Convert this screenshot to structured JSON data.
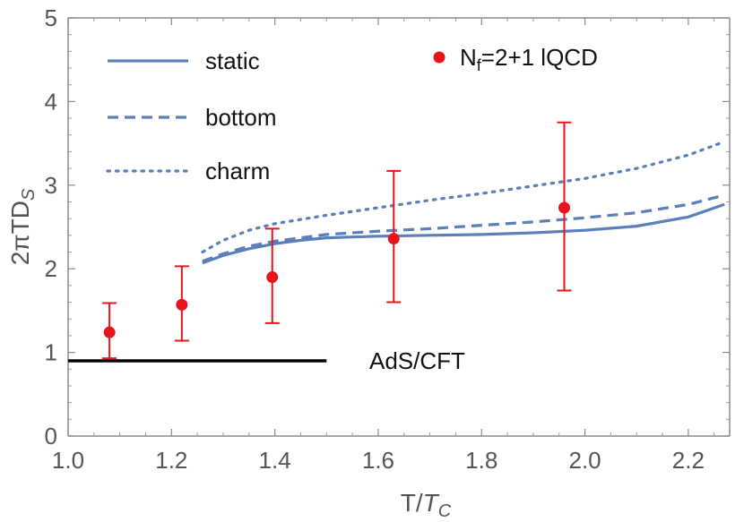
{
  "chart_data": {
    "type": "line",
    "xlabel": "T/T_C",
    "ylabel": "2πTD_S",
    "xlim": [
      1.0,
      2.28
    ],
    "ylim": [
      0,
      5
    ],
    "xticks": [
      "1.0",
      "1.2",
      "1.4",
      "1.6",
      "1.8",
      "2.0",
      "2.2"
    ],
    "yticks": [
      "0",
      "1",
      "2",
      "3",
      "4",
      "5"
    ],
    "grid": false,
    "legend_placement": "top-left",
    "series": [
      {
        "name": "static",
        "style": "solid",
        "color": "#5b7fb8",
        "x": [
          1.26,
          1.3,
          1.35,
          1.4,
          1.45,
          1.5,
          1.6,
          1.7,
          1.8,
          1.9,
          2.0,
          2.1,
          2.2,
          2.27
        ],
        "y": [
          2.07,
          2.16,
          2.24,
          2.3,
          2.34,
          2.37,
          2.39,
          2.4,
          2.41,
          2.43,
          2.46,
          2.51,
          2.62,
          2.77
        ]
      },
      {
        "name": "bottom",
        "style": "dashed",
        "color": "#5b7fb8",
        "x": [
          1.26,
          1.3,
          1.35,
          1.4,
          1.5,
          1.6,
          1.7,
          1.8,
          1.9,
          2.0,
          2.1,
          2.2,
          2.27
        ],
        "y": [
          2.09,
          2.18,
          2.27,
          2.33,
          2.41,
          2.45,
          2.48,
          2.52,
          2.56,
          2.61,
          2.67,
          2.77,
          2.88
        ]
      },
      {
        "name": "charm",
        "style": "dotted",
        "color": "#5b7fb8",
        "x": [
          1.26,
          1.3,
          1.35,
          1.4,
          1.5,
          1.6,
          1.7,
          1.8,
          1.9,
          2.0,
          2.1,
          2.2,
          2.27
        ],
        "y": [
          2.2,
          2.34,
          2.46,
          2.54,
          2.64,
          2.73,
          2.82,
          2.9,
          2.99,
          3.08,
          3.2,
          3.36,
          3.52
        ]
      }
    ],
    "points": {
      "name": "N_f=2+1 lQCD",
      "color": "#e8141c",
      "x": [
        1.08,
        1.22,
        1.395,
        1.63,
        1.96
      ],
      "y": [
        1.24,
        1.57,
        1.9,
        2.36,
        2.73
      ],
      "err_low": [
        0.93,
        1.14,
        1.35,
        1.6,
        1.74
      ],
      "err_high": [
        1.59,
        2.03,
        2.48,
        3.17,
        3.75
      ]
    },
    "reference_line": {
      "label": "AdS/CFT",
      "y": 0.9,
      "x_start": 1.0,
      "x_end": 1.5,
      "color": "#000000"
    }
  }
}
